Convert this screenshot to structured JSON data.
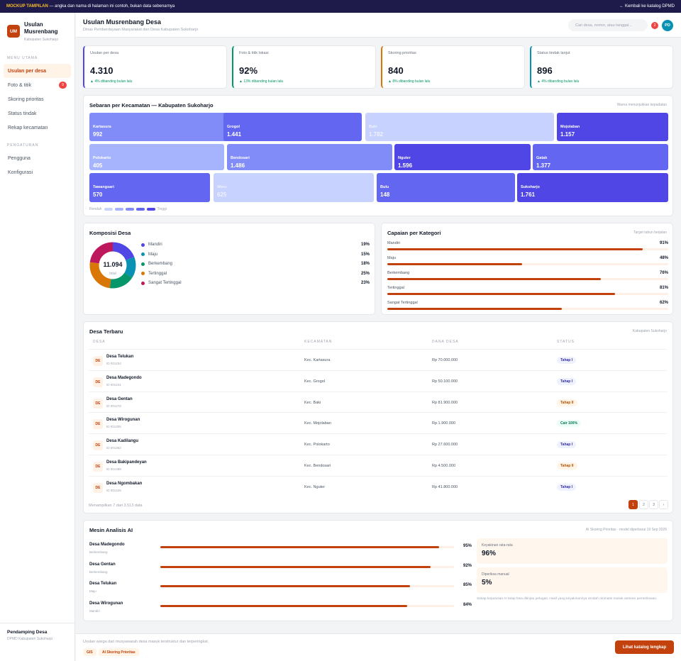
{
  "banner": {
    "tag": "MOCKUP TAMPILAN",
    "text": " — angka dan nama di halaman ini contoh, bukan data sebenarnya",
    "back": "← Kembali ke katalog DPMD"
  },
  "brand": {
    "initials": "UM",
    "title_l1": "Usulan",
    "title_l2": "Musrenbang",
    "sub": "Kabupaten Sukoharjo"
  },
  "nav": {
    "section_main": "MENU UTAMA",
    "main": [
      {
        "label": "Usulan per desa",
        "badge": ""
      },
      {
        "label": "Foto & titik",
        "badge": "9"
      },
      {
        "label": "Skoring prioritas",
        "badge": ""
      },
      {
        "label": "Status tindak",
        "badge": ""
      },
      {
        "label": "Rekap kecamatan",
        "badge": ""
      }
    ],
    "section_settings": "PENGATURAN",
    "settings": [
      {
        "label": "Pengguna"
      },
      {
        "label": "Konfigurasi"
      }
    ]
  },
  "sidebar_footer": {
    "name": "Pendamping Desa",
    "org": "DPMD Kabupaten Sukoharjo"
  },
  "header": {
    "title": "Usulan Musrenbang Desa",
    "subtitle": "Dinas Pemberdayaan Masyarakat dan Desa Kabupaten Sukoharjo",
    "search_placeholder": "Cari desa, nomor, atau tanggal...",
    "notif_count": "2",
    "avatar": "PD"
  },
  "kpis": [
    {
      "label": "Usulan per desa",
      "value": "4.310",
      "change": "▲ 4% dibanding bulan lalu",
      "accent": "#4f46e5"
    },
    {
      "label": "Foto & titik lokasi",
      "value": "92%",
      "change": "▲ 13% dibanding bulan lalu",
      "accent": "#059669"
    },
    {
      "label": "Skoring prioritas",
      "value": "840",
      "change": "▲ 8% dibanding bulan lalu",
      "accent": "#d97706"
    },
    {
      "label": "Status tindak lanjut",
      "value": "896",
      "change": "▲ 4% dibanding bulan lalu",
      "accent": "#0891b2"
    }
  ],
  "treemap": {
    "title": "Sebaran per Kecamatan — Kabupaten Sukoharjo",
    "note": "Warna menunjukkan kepadatan",
    "tiles": [
      {
        "name": "Kartasura",
        "value": "992",
        "color": "#818cf8"
      },
      {
        "name": "Grogol",
        "value": "1.441",
        "color": "#6366f1"
      },
      {
        "name": "Baki",
        "value": "1.782",
        "color": "#c7d2fe"
      },
      {
        "name": "Mojolaban",
        "value": "1.157",
        "color": "#4f46e5"
      },
      {
        "name": "Polokarto",
        "value": "405",
        "color": "#a5b4fc"
      },
      {
        "name": "Bendosari",
        "value": "1.486",
        "color": "#818cf8"
      },
      {
        "name": "Nguter",
        "value": "1.596",
        "color": "#4f46e5"
      },
      {
        "name": "Gatak",
        "value": "1.377",
        "color": "#6366f1"
      },
      {
        "name": "Tawangsari",
        "value": "570",
        "color": "#6366f1"
      },
      {
        "name": "Weru",
        "value": "625",
        "color": "#c7d2fe"
      },
      {
        "name": "Bulu",
        "value": "148",
        "color": "#6366f1"
      },
      {
        "name": "Sukoharjo",
        "value": "1.761",
        "color": "#4f46e5"
      }
    ],
    "legend_low": "Rendah",
    "legend_high": "Tinggi",
    "legend_colors": [
      "#c7d2fe",
      "#a5b4fc",
      "#818cf8",
      "#6366f1",
      "#4f46e5"
    ]
  },
  "composition": {
    "title": "Komposisi Desa",
    "total": "11.094",
    "total_label": "total",
    "items": [
      {
        "label": "Mandiri",
        "pct": "19%",
        "value": 19,
        "color": "#4f46e5"
      },
      {
        "label": "Maju",
        "pct": "15%",
        "value": 15,
        "color": "#0891b2"
      },
      {
        "label": "Berkembang",
        "pct": "18%",
        "value": 18,
        "color": "#059669"
      },
      {
        "label": "Tertinggal",
        "pct": "25%",
        "value": 25,
        "color": "#d97706"
      },
      {
        "label": "Sangat Tertinggal",
        "pct": "23%",
        "value": 23,
        "color": "#be185d"
      }
    ]
  },
  "achievement": {
    "title": "Capaian per Kategori",
    "note": "Target tahun berjalan",
    "items": [
      {
        "label": "Mandiri",
        "pct": "91%",
        "value": 91
      },
      {
        "label": "Maju",
        "pct": "48%",
        "value": 48
      },
      {
        "label": "Berkembang",
        "pct": "76%",
        "value": 76
      },
      {
        "label": "Tertinggal",
        "pct": "81%",
        "value": 81
      },
      {
        "label": "Sangat Tertinggal",
        "pct": "62%",
        "value": 62
      }
    ]
  },
  "table": {
    "title": "Desa Terbaru",
    "note": "Kabupaten Sukoharjo",
    "headers": [
      "DESA",
      "KECAMATAN",
      "DANA DESA",
      "STATUS"
    ],
    "rows": [
      {
        "icon": "DE",
        "name": "Desa Telukan",
        "id": "ID 001234",
        "kec": "Kec. Kartasura",
        "dana": "Rp 70.000.000",
        "status": "Tahap I",
        "tone": "b"
      },
      {
        "icon": "DE",
        "name": "Desa Madegondo",
        "id": "ID 001241",
        "kec": "Kec. Grogol",
        "dana": "Rp 50.100.000",
        "status": "Tahap I",
        "tone": "b"
      },
      {
        "icon": "DE",
        "name": "Desa Gentan",
        "id": "ID 001278",
        "kec": "Kec. Baki",
        "dana": "Rp 81.900.000",
        "status": "Tahap II",
        "tone": "o"
      },
      {
        "icon": "DE",
        "name": "Desa Wirogunan",
        "id": "ID 001305",
        "kec": "Kec. Mojolaban",
        "dana": "Rp 1.900.000",
        "status": "Cair 100%",
        "tone": "g"
      },
      {
        "icon": "DE",
        "name": "Desa Kadilangu",
        "id": "ID 001352",
        "kec": "Kec. Polokarto",
        "dana": "Rp 27.600.000",
        "status": "Tahap I",
        "tone": "b"
      },
      {
        "icon": "DE",
        "name": "Desa Bakipandeyan",
        "id": "ID 001389",
        "kec": "Kec. Bendosari",
        "dana": "Rp 4.500.000",
        "status": "Tahap II",
        "tone": "o"
      },
      {
        "icon": "DE",
        "name": "Desa Ngombakan",
        "id": "ID 001426",
        "kec": "Kec. Nguter",
        "dana": "Rp 41.800.000",
        "status": "Tahap I",
        "tone": "b"
      }
    ],
    "summary": "Menampilkan 7 dari 3.513 data",
    "pages": [
      "1",
      "2",
      "3",
      "›"
    ]
  },
  "ai": {
    "title": "Mesin Analisis AI",
    "note": "AI Skoring Prioritas · model diperbarui 19 Sep 2026",
    "rows": [
      {
        "name": "Desa Madegondo",
        "kat": "Berkembang",
        "pct": "95%",
        "value": 95
      },
      {
        "name": "Desa Gentan",
        "kat": "Berkembang",
        "pct": "92%",
        "value": 92
      },
      {
        "name": "Desa Telukan",
        "kat": "Maju",
        "pct": "85%",
        "value": 85
      },
      {
        "name": "Desa Wirogunan",
        "kat": "Mandiri",
        "pct": "84%",
        "value": 84
      }
    ],
    "conf_label": "Keyakinan rata-rata",
    "conf_value": "96%",
    "manual_label": "Diperiksa manual",
    "manual_value": "5%",
    "footnote": "Setiap keputusan AI tetap bisa ditinjau petugas. Hasil yang keyakinannya rendah otomatis masuk antrean pemeriksaan."
  },
  "footer": {
    "text": "Usulan warga dari musyawarah desa masuk terstruktur dan terperingkat.",
    "chip1": "GIS",
    "chip2": "AI Skoring Prioritas",
    "cta": "Lihat katalog lengkap"
  }
}
